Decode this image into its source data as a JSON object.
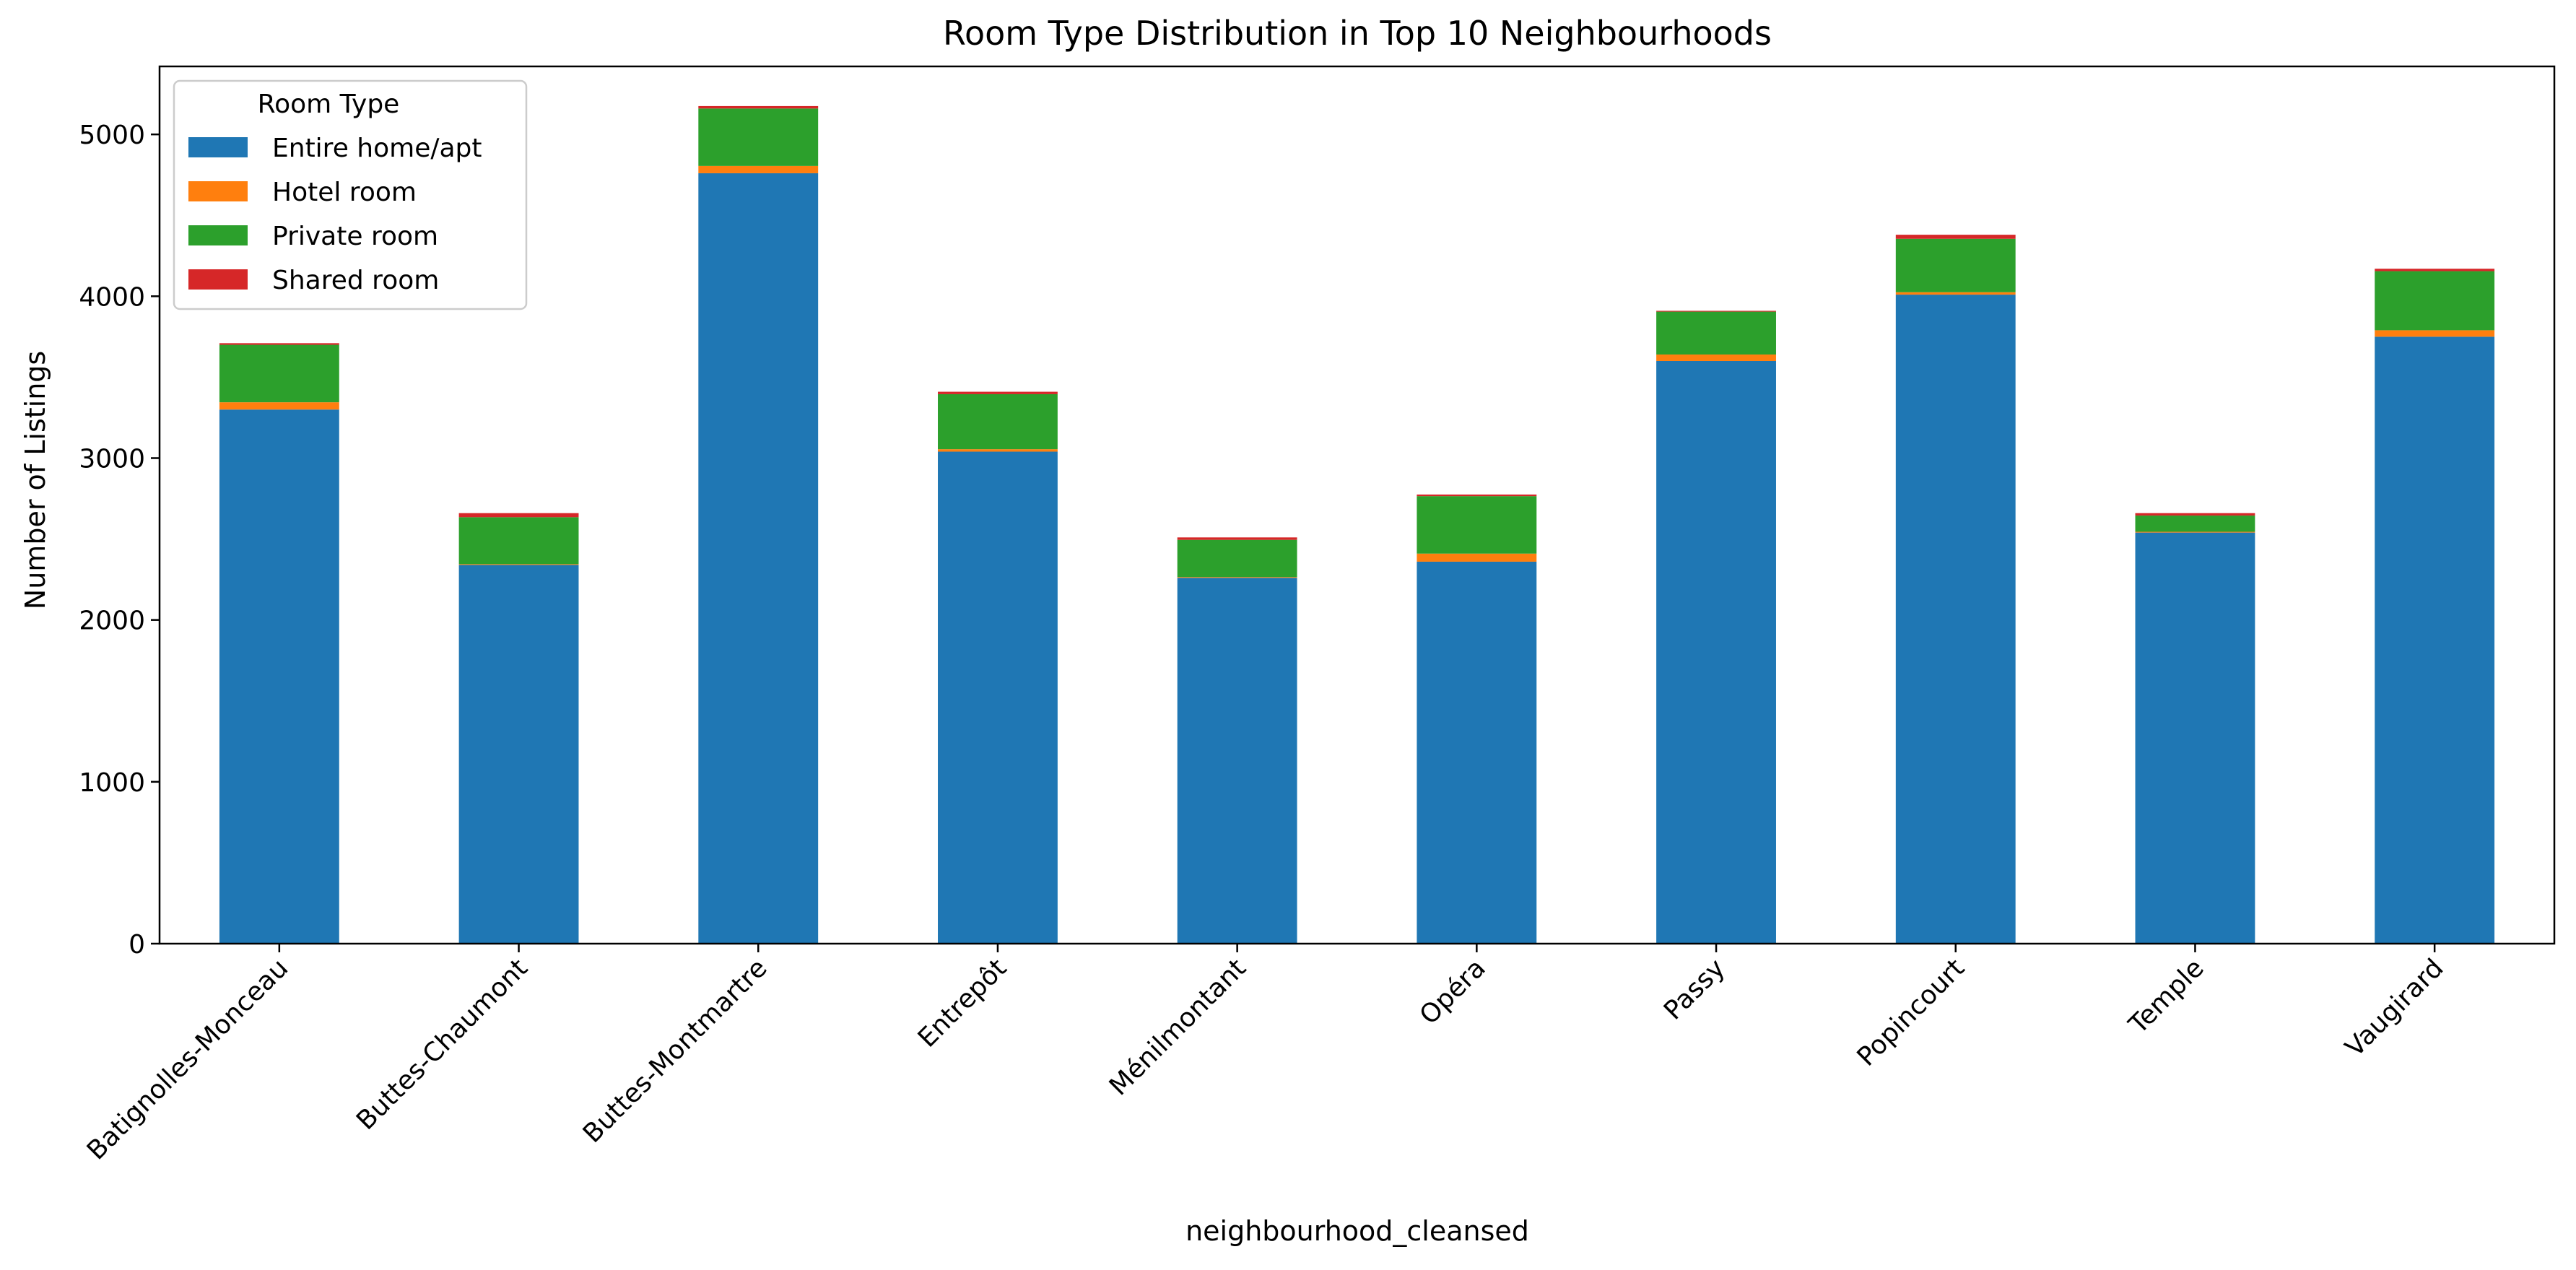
{
  "chart_data": {
    "type": "bar",
    "stacked": true,
    "title": "Room Type Distribution in Top 10 Neighbourhoods",
    "xlabel": "neighbourhood_cleansed",
    "ylabel": "Number of Listings",
    "ylim": [
      0,
      5420
    ],
    "yticks": [
      0,
      1000,
      2000,
      3000,
      4000,
      5000
    ],
    "grid": false,
    "legend": {
      "title": "Room Type",
      "placement": "top-left"
    },
    "categories": [
      "Batignolles-Monceau",
      "Buttes-Chaumont",
      "Buttes-Montmartre",
      "Entrepôt",
      "Ménilmontant",
      "Opéra",
      "Passy",
      "Popincourt",
      "Temple",
      "Vaugirard"
    ],
    "series": [
      {
        "name": "Entire home/apt",
        "color": "#1f77b4",
        "values": [
          3300,
          2340,
          4760,
          3040,
          2260,
          2360,
          3600,
          4010,
          2540,
          3750
        ]
      },
      {
        "name": "Hotel room",
        "color": "#ff7f0e",
        "values": [
          45,
          5,
          45,
          15,
          5,
          50,
          40,
          15,
          5,
          40
        ]
      },
      {
        "name": "Private room",
        "color": "#2ca02c",
        "values": [
          355,
          290,
          355,
          340,
          230,
          355,
          265,
          330,
          100,
          365
        ]
      },
      {
        "name": "Shared room",
        "color": "#d62728",
        "values": [
          10,
          25,
          15,
          15,
          15,
          10,
          5,
          25,
          15,
          15
        ]
      }
    ]
  }
}
